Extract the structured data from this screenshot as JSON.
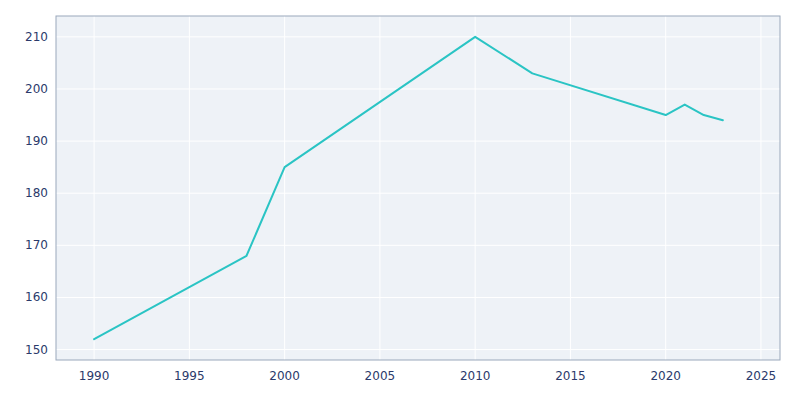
{
  "chart_data": {
    "type": "line",
    "x": [
      1990,
      1998,
      2000,
      2010,
      2013,
      2020,
      2021,
      2022,
      2023
    ],
    "values": [
      152,
      168,
      185,
      210,
      203,
      195,
      197,
      195,
      194
    ],
    "color": "#2ac4c4",
    "xlim": [
      1988,
      2026
    ],
    "ylim": [
      148,
      214
    ],
    "xticks": [
      1990,
      1995,
      2000,
      2005,
      2010,
      2015,
      2020,
      2025
    ],
    "yticks": [
      150,
      160,
      170,
      180,
      190,
      200,
      210
    ],
    "grid": true
  }
}
